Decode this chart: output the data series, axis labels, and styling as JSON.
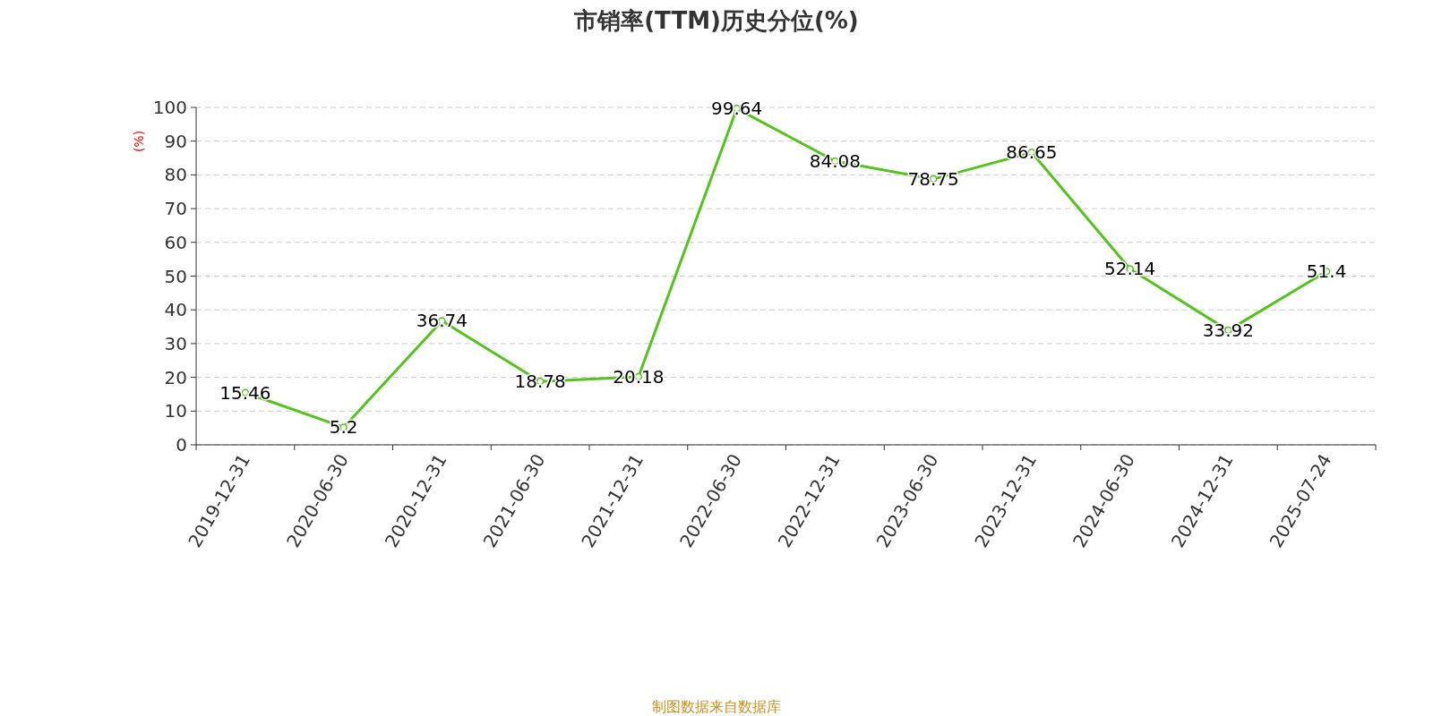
{
  "chart_data": {
    "type": "line",
    "title": "市销率(TTM)历史分位(%)",
    "ylabel": "(%)",
    "categories": [
      "2019-12-31",
      "2020-06-30",
      "2020-12-31",
      "2021-06-30",
      "2021-12-31",
      "2022-06-30",
      "2022-12-31",
      "2023-06-30",
      "2023-12-31",
      "2024-06-30",
      "2024-12-31",
      "2025-07-24"
    ],
    "series": [
      {
        "color": "#52c41a",
        "values": [
          15.46,
          5.2,
          36.74,
          18.78,
          20.18,
          99.64,
          84.08,
          78.75,
          86.65,
          52.14,
          33.92,
          51.4
        ]
      }
    ],
    "ylim": [
      0,
      100
    ],
    "yticks": [
      0,
      10,
      20,
      30,
      40,
      50,
      60,
      70,
      80,
      90,
      100
    ],
    "grid": "y",
    "marker": "circle",
    "line_style": "solid",
    "data_labels": true,
    "annotations": [
      "制图数据来自数据库"
    ]
  }
}
